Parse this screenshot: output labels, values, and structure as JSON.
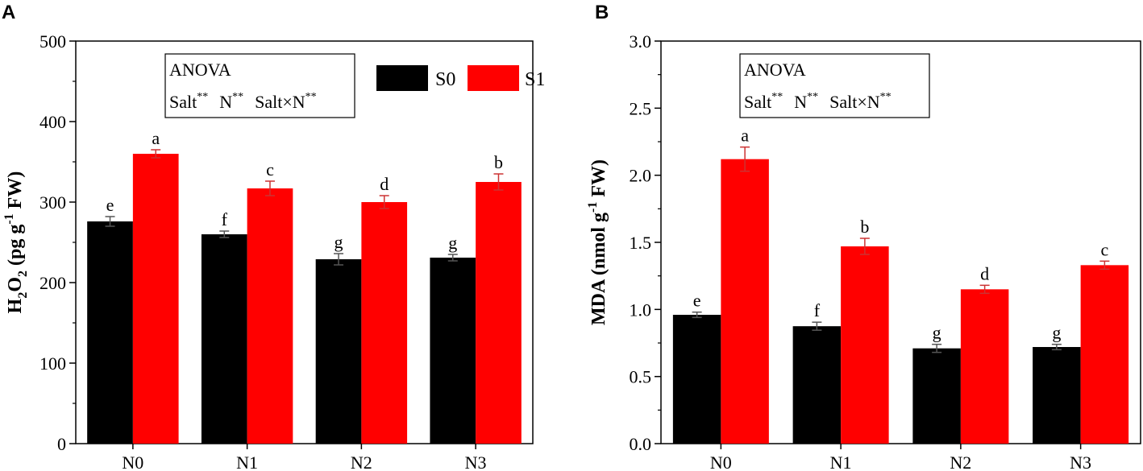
{
  "colors": {
    "s0": "#000000",
    "s1": "#ff0000",
    "axis": "#000000",
    "err_s0": "#555555",
    "err_s1": "#cc3333"
  },
  "chart_data": [
    {
      "panel_label": "A",
      "type": "bar",
      "categories": [
        "N0",
        "N1",
        "N2",
        "N3"
      ],
      "series": [
        {
          "name": "S0",
          "values": [
            276,
            260,
            229,
            231
          ],
          "errors": [
            6,
            4,
            7,
            4
          ],
          "letters": [
            "e",
            "f",
            "g",
            "g"
          ]
        },
        {
          "name": "S1",
          "values": [
            360,
            317,
            300,
            325
          ],
          "errors": [
            5,
            9,
            8,
            10
          ],
          "letters": [
            "a",
            "c",
            "d",
            "b"
          ]
        }
      ],
      "ylabel_main": "H",
      "ylabel_sub1": "2",
      "ylabel_mid": "O",
      "ylabel_sub2": "2",
      "ylabel_rest": " (pg g",
      "ylabel_sup": "-1",
      "ylabel_end": " FW)",
      "ylim": [
        0,
        500
      ],
      "yticks": [
        "0",
        "100",
        "200",
        "300",
        "400",
        "500"
      ],
      "anova": {
        "title": "ANOVA",
        "salt": "Salt",
        "n": "N",
        "inter": "Salt×N",
        "sig": "**"
      },
      "legend": [
        "S0",
        "S1"
      ]
    },
    {
      "panel_label": "B",
      "type": "bar",
      "categories": [
        "N0",
        "N1",
        "N2",
        "N3"
      ],
      "series": [
        {
          "name": "S0",
          "values": [
            0.96,
            0.875,
            0.71,
            0.72
          ],
          "errors": [
            0.02,
            0.03,
            0.03,
            0.02
          ],
          "letters": [
            "e",
            "f",
            "g",
            "g"
          ]
        },
        {
          "name": "S1",
          "values": [
            2.12,
            1.47,
            1.15,
            1.33
          ],
          "errors": [
            0.09,
            0.06,
            0.03,
            0.03
          ],
          "letters": [
            "a",
            "b",
            "d",
            "c"
          ]
        }
      ],
      "ylabel_rest": "MDA (nmol g",
      "ylabel_sup": "-1",
      "ylabel_end": " FW)",
      "ylim": [
        0,
        3.0
      ],
      "yticks": [
        "0.0",
        "0.5",
        "1.0",
        "1.5",
        "2.0",
        "2.5",
        "3.0"
      ],
      "anova": {
        "title": "ANOVA",
        "salt": "Salt",
        "n": "N",
        "inter": "Salt×N",
        "sig": "**"
      }
    }
  ]
}
